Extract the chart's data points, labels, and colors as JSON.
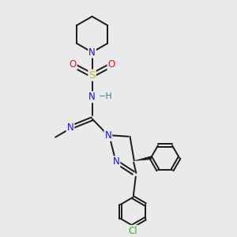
{
  "background_color": "#e8eaec",
  "bond_color": "#1a1a1a",
  "bond_width": 1.4,
  "atom_colors": {
    "N": "#1010ee",
    "O": "#ee1010",
    "S": "#ccbb00",
    "Cl": "#22bb22",
    "H": "#228888",
    "C": "#1a1a1a"
  },
  "font_size": 8.5,
  "fig_width": 3.0,
  "fig_height": 3.0,
  "dpi": 100,
  "xlim": [
    0,
    10
  ],
  "ylim": [
    0,
    10
  ]
}
